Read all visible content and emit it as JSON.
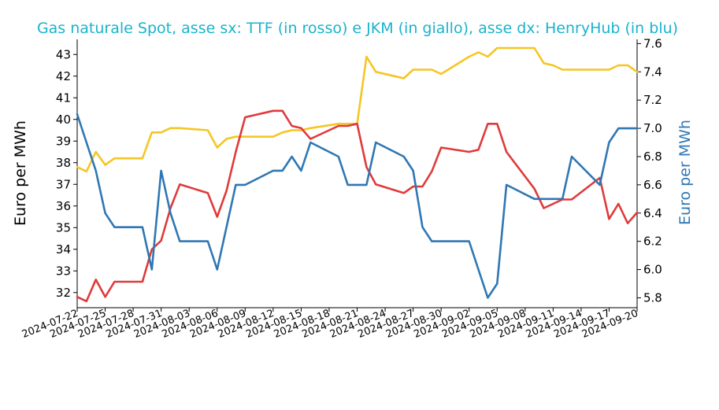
{
  "chart_data": {
    "type": "line",
    "title": "Gas naturale Spot, asse sx: TTF (in rosso) e JKM (in giallo), asse dx: HenryHub (in blu)",
    "ylabel_left": "Euro per MWh",
    "ylabel_right": "Euro per MWh",
    "xlabel": "",
    "ylim_left": [
      31.3,
      43.7
    ],
    "ylim_right": [
      5.73,
      7.63
    ],
    "yticks_left": [
      32,
      33,
      34,
      35,
      36,
      37,
      38,
      39,
      40,
      41,
      42,
      43
    ],
    "yticks_right": [
      5.8,
      6.0,
      6.2,
      6.4,
      6.6,
      6.8,
      7.0,
      7.2,
      7.4,
      7.6
    ],
    "x_tick_labels": [
      "2024-07-22",
      "2024-07-25",
      "2024-07-28",
      "2024-07-31",
      "2024-08-03",
      "2024-08-06",
      "2024-08-09",
      "2024-08-12",
      "2024-08-15",
      "2024-08-18",
      "2024-08-21",
      "2024-08-24",
      "2024-08-27",
      "2024-08-30",
      "2024-09-02",
      "2024-09-05",
      "2024-09-08",
      "2024-09-11",
      "2024-09-14",
      "2024-09-17",
      "2024-09-20"
    ],
    "x_start": "2024-07-22",
    "x_end": "2024-09-20",
    "grid": false,
    "colors": {
      "ttf": "#e03a3a",
      "jkm": "#f5c624",
      "henryhub": "#2f77b4",
      "title": "#1ab3cc",
      "right_axis": "#2f77b4"
    },
    "series": [
      {
        "key": "ttf",
        "axis": "left",
        "x": [
          "2024-07-22",
          "2024-07-23",
          "2024-07-24",
          "2024-07-25",
          "2024-07-26",
          "2024-07-29",
          "2024-07-30",
          "2024-07-31",
          "2024-08-01",
          "2024-08-02",
          "2024-08-05",
          "2024-08-06",
          "2024-08-07",
          "2024-08-08",
          "2024-08-09",
          "2024-08-12",
          "2024-08-13",
          "2024-08-14",
          "2024-08-15",
          "2024-08-16",
          "2024-08-19",
          "2024-08-20",
          "2024-08-21",
          "2024-08-22",
          "2024-08-23",
          "2024-08-26",
          "2024-08-27",
          "2024-08-28",
          "2024-08-29",
          "2024-08-30",
          "2024-09-02",
          "2024-09-03",
          "2024-09-04",
          "2024-09-05",
          "2024-09-06",
          "2024-09-09",
          "2024-09-10",
          "2024-09-11",
          "2024-09-12",
          "2024-09-13",
          "2024-09-16",
          "2024-09-17",
          "2024-09-18",
          "2024-09-19",
          "2024-09-20"
        ],
        "values": [
          31.8,
          31.6,
          32.6,
          31.8,
          32.5,
          32.5,
          34.0,
          34.4,
          35.9,
          37.0,
          36.6,
          35.5,
          36.7,
          38.5,
          40.1,
          40.4,
          40.4,
          39.7,
          39.6,
          39.1,
          39.7,
          39.7,
          39.8,
          37.8,
          37.0,
          36.6,
          36.9,
          36.9,
          37.6,
          38.7,
          38.5,
          38.6,
          39.8,
          39.8,
          38.5,
          36.8,
          35.9,
          36.1,
          36.3,
          36.3,
          37.3,
          35.4,
          36.1,
          35.2,
          35.7
        ]
      },
      {
        "key": "jkm",
        "axis": "left",
        "x": [
          "2024-07-22",
          "2024-07-23",
          "2024-07-24",
          "2024-07-25",
          "2024-07-26",
          "2024-07-29",
          "2024-07-30",
          "2024-07-31",
          "2024-08-01",
          "2024-08-02",
          "2024-08-05",
          "2024-08-06",
          "2024-08-07",
          "2024-08-08",
          "2024-08-09",
          "2024-08-12",
          "2024-08-13",
          "2024-08-14",
          "2024-08-15",
          "2024-08-16",
          "2024-08-19",
          "2024-08-20",
          "2024-08-21",
          "2024-08-22",
          "2024-08-23",
          "2024-08-26",
          "2024-08-27",
          "2024-08-28",
          "2024-08-29",
          "2024-08-30",
          "2024-09-02",
          "2024-09-03",
          "2024-09-04",
          "2024-09-05",
          "2024-09-06",
          "2024-09-09",
          "2024-09-10",
          "2024-09-11",
          "2024-09-12",
          "2024-09-13",
          "2024-09-16",
          "2024-09-17",
          "2024-09-18",
          "2024-09-19",
          "2024-09-20"
        ],
        "values": [
          37.8,
          37.6,
          38.5,
          37.9,
          38.2,
          38.2,
          39.4,
          39.4,
          39.6,
          39.6,
          39.5,
          38.7,
          39.1,
          39.2,
          39.2,
          39.2,
          39.4,
          39.5,
          39.5,
          39.6,
          39.8,
          39.8,
          39.8,
          42.9,
          42.2,
          41.9,
          42.3,
          42.3,
          42.3,
          42.1,
          42.9,
          43.1,
          42.9,
          43.3,
          43.3,
          43.3,
          42.6,
          42.5,
          42.3,
          42.3,
          42.3,
          42.3,
          42.5,
          42.5,
          42.2
        ]
      },
      {
        "key": "henryhub",
        "axis": "right",
        "x": [
          "2024-07-22",
          "2024-07-23",
          "2024-07-24",
          "2024-07-25",
          "2024-07-26",
          "2024-07-29",
          "2024-07-30",
          "2024-07-31",
          "2024-08-01",
          "2024-08-02",
          "2024-08-05",
          "2024-08-06",
          "2024-08-07",
          "2024-08-08",
          "2024-08-09",
          "2024-08-12",
          "2024-08-13",
          "2024-08-14",
          "2024-08-15",
          "2024-08-16",
          "2024-08-19",
          "2024-08-20",
          "2024-08-21",
          "2024-08-22",
          "2024-08-23",
          "2024-08-26",
          "2024-08-27",
          "2024-08-28",
          "2024-08-29",
          "2024-08-30",
          "2024-09-02",
          "2024-09-03",
          "2024-09-04",
          "2024-09-05",
          "2024-09-06",
          "2024-09-09",
          "2024-09-10",
          "2024-09-11",
          "2024-09-12",
          "2024-09-13",
          "2024-09-16",
          "2024-09-17",
          "2024-09-18",
          "2024-09-19",
          "2024-09-20"
        ],
        "values": [
          7.1,
          6.9,
          6.7,
          6.4,
          6.3,
          6.3,
          6.0,
          6.7,
          6.4,
          6.2,
          6.2,
          6.0,
          6.3,
          6.6,
          6.6,
          6.7,
          6.7,
          6.8,
          6.7,
          6.9,
          6.8,
          6.6,
          6.6,
          6.6,
          6.9,
          6.8,
          6.7,
          6.3,
          6.2,
          6.2,
          6.2,
          6.0,
          5.8,
          5.9,
          6.6,
          6.5,
          6.5,
          6.5,
          6.5,
          6.8,
          6.6,
          6.9,
          7.0,
          7.0,
          7.0
        ]
      }
    ]
  }
}
